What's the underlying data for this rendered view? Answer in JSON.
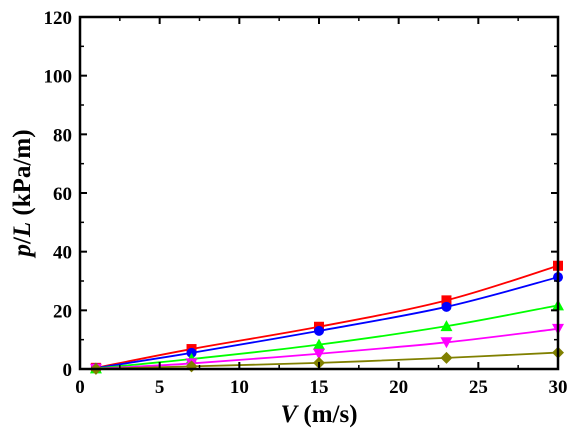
{
  "chart_data": {
    "type": "line",
    "title": "",
    "xlabel": {
      "var": "V",
      "unit": " (m/s)"
    },
    "ylabel": {
      "var1": "p",
      "sep": "/",
      "var2": "L",
      "unit": " (kPa/m)"
    },
    "xlim": [
      0,
      30
    ],
    "ylim": [
      0,
      120
    ],
    "xticks": [
      0,
      5,
      10,
      15,
      20,
      25,
      30
    ],
    "yticks": [
      0,
      20,
      40,
      60,
      80,
      100,
      120
    ],
    "grid": false,
    "legend": "none",
    "series": [
      {
        "color": "#ff0000",
        "marker": "square",
        "x": [
          1,
          7,
          15,
          23,
          30
        ],
        "y": [
          0.4,
          6.8,
          14.4,
          23.4,
          35.2
        ]
      },
      {
        "color": "#0000ff",
        "marker": "circle",
        "x": [
          1,
          7,
          15,
          23,
          30
        ],
        "y": [
          0.3,
          5.5,
          13.0,
          21.2,
          31.3
        ]
      },
      {
        "color": "#00ff00",
        "marker": "triangle-up",
        "x": [
          1,
          7,
          15,
          23,
          30
        ],
        "y": [
          0.2,
          3.4,
          8.3,
          14.6,
          21.7
        ]
      },
      {
        "color": "#ff00ff",
        "marker": "triangle-down",
        "x": [
          1,
          7,
          15,
          23,
          30
        ],
        "y": [
          0.1,
          1.9,
          5.2,
          9.1,
          13.7
        ]
      },
      {
        "color": "#808000",
        "marker": "diamond",
        "x": [
          1,
          7,
          15,
          23,
          30
        ],
        "y": [
          0.05,
          0.9,
          2.1,
          3.8,
          5.6
        ]
      }
    ]
  }
}
